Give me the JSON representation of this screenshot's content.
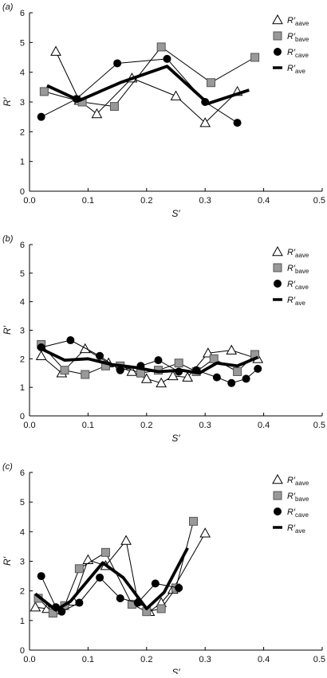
{
  "chart_data": [
    {
      "panel_label": "(a)",
      "type": "line",
      "xlabel": "S′",
      "ylabel": "R′",
      "xlim": [
        0,
        0.5
      ],
      "ylim": [
        0,
        6
      ],
      "xticks": [
        "0.0",
        "0.1",
        "0.2",
        "0.3",
        "0.4",
        "0.5"
      ],
      "yticks": [
        "0",
        "1",
        "2",
        "3",
        "4",
        "5",
        "6"
      ],
      "legend_position": "top-right",
      "series": [
        {
          "name": "R′",
          "sub": "aave",
          "marker": "triangle",
          "x": [
            0.045,
            0.085,
            0.115,
            0.175,
            0.25,
            0.3,
            0.355
          ],
          "y": [
            4.7,
            3.05,
            2.6,
            3.8,
            3.2,
            2.3,
            3.35
          ]
        },
        {
          "name": "R′",
          "sub": "bave",
          "marker": "square",
          "x": [
            0.025,
            0.09,
            0.145,
            0.225,
            0.31,
            0.385
          ],
          "y": [
            3.35,
            3.0,
            2.85,
            4.85,
            3.65,
            4.5
          ]
        },
        {
          "name": "R′",
          "sub": "cave",
          "marker": "circle",
          "x": [
            0.02,
            0.08,
            0.15,
            0.235,
            0.3,
            0.355
          ],
          "y": [
            2.5,
            3.1,
            4.3,
            4.45,
            3.0,
            2.3
          ]
        },
        {
          "name": "R′",
          "sub": "ave",
          "marker": "thick",
          "x": [
            0.03,
            0.085,
            0.155,
            0.235,
            0.305,
            0.375
          ],
          "y": [
            3.55,
            3.05,
            3.65,
            4.2,
            2.95,
            3.4
          ]
        }
      ]
    },
    {
      "panel_label": "(b)",
      "type": "line",
      "xlabel": "S′",
      "ylabel": "R′",
      "xlim": [
        0,
        0.5
      ],
      "ylim": [
        0,
        6
      ],
      "xticks": [
        "0.0",
        "0.1",
        "0.2",
        "0.3",
        "0.4",
        "0.5"
      ],
      "yticks": [
        "0",
        "1",
        "2",
        "3",
        "4",
        "5",
        "6"
      ],
      "legend_position": "top-right",
      "series": [
        {
          "name": "R′",
          "sub": "aave",
          "marker": "triangle",
          "x": [
            0.02,
            0.055,
            0.095,
            0.135,
            0.175,
            0.2,
            0.225,
            0.245,
            0.27,
            0.305,
            0.345,
            0.39
          ],
          "y": [
            2.1,
            1.5,
            2.35,
            1.85,
            1.55,
            1.3,
            1.15,
            1.4,
            1.35,
            2.2,
            2.3,
            2.0
          ]
        },
        {
          "name": "R′",
          "sub": "bave",
          "marker": "square",
          "x": [
            0.02,
            0.06,
            0.095,
            0.13,
            0.155,
            0.19,
            0.22,
            0.255,
            0.285,
            0.315,
            0.355,
            0.385
          ],
          "y": [
            2.5,
            1.6,
            1.45,
            1.75,
            1.75,
            1.5,
            1.6,
            1.85,
            1.55,
            2.0,
            1.55,
            2.15
          ]
        },
        {
          "name": "R′",
          "sub": "cave",
          "marker": "circle",
          "x": [
            0.02,
            0.07,
            0.12,
            0.155,
            0.19,
            0.22,
            0.255,
            0.285,
            0.32,
            0.345,
            0.37,
            0.39
          ],
          "y": [
            2.4,
            2.65,
            2.1,
            1.6,
            1.75,
            1.95,
            1.55,
            1.6,
            1.35,
            1.15,
            1.3,
            1.65
          ]
        },
        {
          "name": "R′",
          "sub": "ave",
          "marker": "thick",
          "x": [
            0.02,
            0.06,
            0.1,
            0.14,
            0.18,
            0.22,
            0.26,
            0.29,
            0.32,
            0.355,
            0.39
          ],
          "y": [
            2.35,
            1.95,
            2.0,
            1.8,
            1.7,
            1.55,
            1.6,
            1.5,
            1.85,
            1.75,
            2.05
          ]
        }
      ]
    },
    {
      "panel_label": "(c)",
      "type": "line",
      "xlabel": "S′",
      "ylabel": "R′",
      "xlim": [
        0,
        0.5
      ],
      "ylim": [
        0,
        6
      ],
      "xticks": [
        "0.0",
        "0.1",
        "0.2",
        "0.3",
        "0.4",
        "0.5"
      ],
      "yticks": [
        "0",
        "1",
        "2",
        "3",
        "4",
        "5",
        "6"
      ],
      "legend_position": "top-right",
      "series": [
        {
          "name": "R′",
          "sub": "aave",
          "marker": "triangle",
          "x": [
            0.01,
            0.03,
            0.05,
            0.075,
            0.1,
            0.13,
            0.165,
            0.185,
            0.205,
            0.225,
            0.245,
            0.3
          ],
          "y": [
            1.45,
            1.4,
            1.35,
            1.65,
            3.05,
            2.85,
            3.7,
            1.65,
            1.3,
            1.6,
            2.05,
            3.95
          ]
        },
        {
          "name": "R′",
          "sub": "bave",
          "marker": "square",
          "x": [
            0.015,
            0.04,
            0.06,
            0.085,
            0.13,
            0.175,
            0.2,
            0.225,
            0.25,
            0.28
          ],
          "y": [
            1.75,
            1.25,
            1.5,
            2.75,
            3.3,
            1.55,
            1.3,
            1.4,
            2.1,
            4.35
          ]
        },
        {
          "name": "R′",
          "sub": "cave",
          "marker": "circle",
          "x": [
            0.02,
            0.045,
            0.055,
            0.085,
            0.12,
            0.155,
            0.185,
            0.215,
            0.255
          ],
          "y": [
            2.5,
            1.45,
            1.3,
            1.6,
            2.45,
            1.75,
            1.6,
            2.25,
            2.1
          ]
        },
        {
          "name": "R′",
          "sub": "ave",
          "marker": "thick",
          "x": [
            0.01,
            0.045,
            0.07,
            0.125,
            0.16,
            0.2,
            0.23,
            0.27
          ],
          "y": [
            1.9,
            1.35,
            1.65,
            2.95,
            2.45,
            1.4,
            1.95,
            3.45
          ]
        }
      ]
    }
  ]
}
